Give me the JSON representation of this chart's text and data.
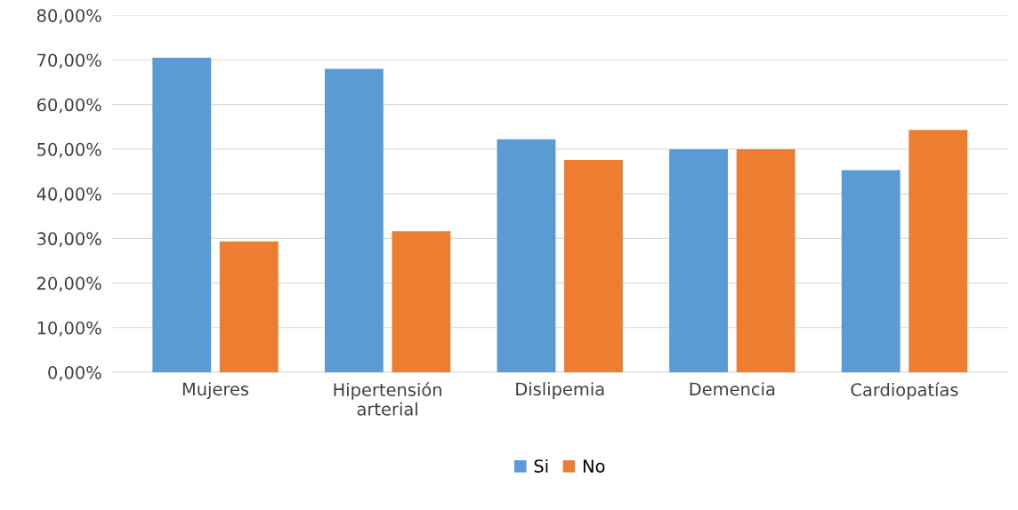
{
  "chart_data": {
    "type": "bar",
    "categories": [
      "Mujeres",
      "Hipertensión\narterial",
      "Dislipemia",
      "Demencia",
      "Cardiopatías"
    ],
    "series": [
      {
        "name": "Si",
        "color": "#5b9bd5",
        "values": [
          70.5,
          68.0,
          52.2,
          50.0,
          45.3
        ]
      },
      {
        "name": "No",
        "color": "#ed7d31",
        "values": [
          29.3,
          31.6,
          47.6,
          50.0,
          54.3
        ]
      }
    ],
    "ylim": [
      0,
      80
    ],
    "yticks": [
      {
        "value": 0,
        "label": "0,00%"
      },
      {
        "value": 10,
        "label": "10,00%"
      },
      {
        "value": 20,
        "label": "20,00%"
      },
      {
        "value": 30,
        "label": "30,00%"
      },
      {
        "value": 40,
        "label": "40,00%"
      },
      {
        "value": 50,
        "label": "50,00%"
      },
      {
        "value": 60,
        "label": "60,00%"
      },
      {
        "value": 70,
        "label": "70,00%"
      },
      {
        "value": 80,
        "label": "80,00%"
      }
    ],
    "grid": "y",
    "legend": "bottom"
  }
}
